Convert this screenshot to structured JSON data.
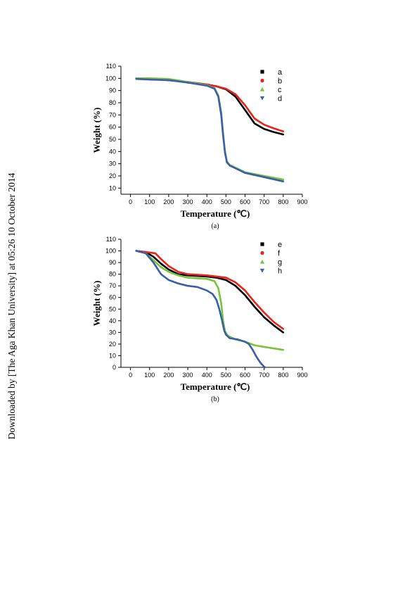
{
  "watermark": {
    "text": "Downloaded by [The Aga Khan University] at 05:26 10 October 2014"
  },
  "chart_data": [
    {
      "type": "line",
      "panel_label": "(a)",
      "xlabel": "Temperature (℃)",
      "ylabel": "Weight (%)",
      "xlim": [
        -50,
        900
      ],
      "ylim": [
        5,
        110
      ],
      "xticks": [
        0,
        100,
        200,
        300,
        400,
        500,
        600,
        700,
        800,
        900
      ],
      "yticks": [
        10,
        20,
        30,
        40,
        50,
        60,
        70,
        80,
        90,
        100,
        110
      ],
      "grid": false,
      "legend_position": "top-right",
      "series": [
        {
          "name": "a",
          "color": "#000000",
          "marker": "square",
          "x": [
            30,
            100,
            200,
            300,
            400,
            450,
            500,
            550,
            600,
            650,
            700,
            750,
            800
          ],
          "y": [
            100,
            99.5,
            98.5,
            97,
            95,
            93.5,
            91,
            85,
            74,
            63,
            58.5,
            56,
            54
          ]
        },
        {
          "name": "b",
          "color": "#e8231b",
          "marker": "circle",
          "x": [
            30,
            100,
            200,
            300,
            400,
            450,
            500,
            550,
            600,
            650,
            700,
            750,
            800
          ],
          "y": [
            100,
            99.5,
            98.5,
            97,
            95,
            93.5,
            91.5,
            87,
            78,
            67,
            62,
            59,
            56.5
          ]
        },
        {
          "name": "c",
          "color": "#77c43b",
          "marker": "triangle-up",
          "x": [
            30,
            100,
            200,
            300,
            400,
            440,
            460,
            475,
            485,
            495,
            505,
            520,
            560,
            600,
            700,
            800
          ],
          "y": [
            100,
            100,
            99.5,
            97,
            94.5,
            92,
            86,
            72,
            55,
            40,
            32,
            29,
            26,
            23,
            20,
            17
          ]
        },
        {
          "name": "d",
          "color": "#3a5eab",
          "marker": "triangle-down",
          "x": [
            30,
            100,
            200,
            300,
            400,
            440,
            460,
            475,
            485,
            495,
            505,
            520,
            560,
            600,
            700,
            800
          ],
          "y": [
            99.5,
            99,
            98.5,
            96.5,
            94,
            91.5,
            85,
            70,
            53,
            39,
            31,
            28.5,
            25.5,
            22.5,
            19,
            15.5
          ]
        }
      ]
    },
    {
      "type": "line",
      "panel_label": "(b)",
      "xlabel": "Temperature (℃)",
      "ylabel": "Weight (%)",
      "xlim": [
        -50,
        900
      ],
      "ylim": [
        0,
        110
      ],
      "xticks": [
        0,
        100,
        200,
        300,
        400,
        500,
        600,
        700,
        800,
        900
      ],
      "yticks": [
        0,
        10,
        20,
        30,
        40,
        50,
        60,
        70,
        80,
        90,
        100,
        110
      ],
      "grid": false,
      "legend_position": "top-right",
      "series": [
        {
          "name": "e",
          "color": "#000000",
          "marker": "square",
          "x": [
            30,
            80,
            120,
            160,
            200,
            250,
            300,
            400,
            450,
            500,
            550,
            600,
            650,
            700,
            750,
            800
          ],
          "y": [
            100,
            99,
            95,
            89,
            84,
            80,
            79,
            78,
            77,
            75,
            70,
            62,
            52,
            43,
            36,
            30
          ]
        },
        {
          "name": "f",
          "color": "#e8231b",
          "marker": "circle",
          "x": [
            30,
            80,
            130,
            160,
            200,
            250,
            300,
            400,
            450,
            500,
            550,
            600,
            650,
            700,
            750,
            800
          ],
          "y": [
            100,
            99,
            98,
            93,
            87,
            82,
            80,
            79,
            78,
            77,
            73,
            66,
            56,
            47,
            39,
            33
          ]
        },
        {
          "name": "g",
          "color": "#77c43b",
          "marker": "triangle-up",
          "x": [
            30,
            80,
            120,
            160,
            200,
            250,
            300,
            400,
            440,
            460,
            475,
            485,
            495,
            510,
            550,
            600,
            650,
            700,
            800
          ],
          "y": [
            100,
            98,
            92,
            86,
            82,
            79,
            77,
            76,
            74,
            68,
            55,
            40,
            31,
            27,
            24,
            22,
            19,
            17.5,
            15
          ]
        },
        {
          "name": "h",
          "color": "#3a5eab",
          "marker": "triangle-down",
          "x": [
            30,
            80,
            120,
            160,
            200,
            250,
            300,
            350,
            400,
            430,
            450,
            465,
            480,
            490,
            500,
            520,
            560,
            600,
            620,
            640,
            660,
            680,
            700,
            705
          ],
          "y": [
            100,
            98,
            90,
            80,
            75,
            72,
            70,
            69,
            66,
            63,
            58,
            50,
            40,
            32,
            28,
            25,
            24,
            22,
            20,
            15,
            9,
            4,
            0.5,
            0
          ]
        }
      ]
    }
  ]
}
